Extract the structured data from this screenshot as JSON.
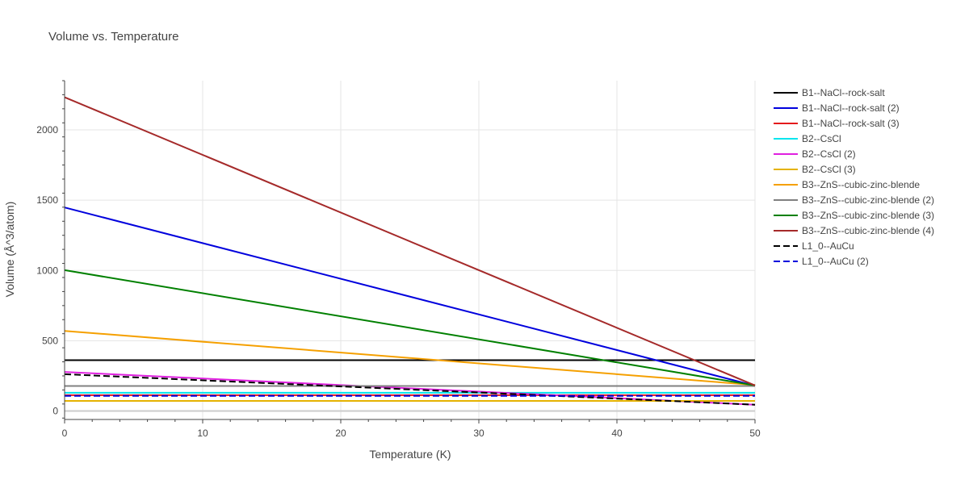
{
  "chart_data": {
    "type": "line",
    "title": "Volume vs. Temperature",
    "xlabel": "Temperature (K)",
    "ylabel": "Volume (Å^3/atom)",
    "xlim": [
      0,
      50
    ],
    "ylim": [
      -60,
      2350
    ],
    "x_ticks": [
      0,
      10,
      20,
      30,
      40,
      50
    ],
    "y_ticks": [
      0,
      500,
      1000,
      1500,
      2000
    ],
    "grid": true,
    "legend_position": "right",
    "series": [
      {
        "name": "B1--NaCl--rock-salt",
        "color": "#000000",
        "dash": "solid",
        "x": [
          0,
          50
        ],
        "y": [
          362,
          362
        ]
      },
      {
        "name": "B1--NaCl--rock-salt (2)",
        "color": "#0000dd",
        "dash": "solid",
        "x": [
          0,
          50
        ],
        "y": [
          1448,
          180
        ]
      },
      {
        "name": "B1--NaCl--rock-salt (3)",
        "color": "#e41a1c",
        "dash": "solid",
        "x": [
          0,
          50
        ],
        "y": [
          113,
          113
        ]
      },
      {
        "name": "B2--CsCl",
        "color": "#00e5ee",
        "dash": "solid",
        "x": [
          0,
          50
        ],
        "y": [
          130,
          130
        ]
      },
      {
        "name": "B2--CsCl (2)",
        "color": "#e020e0",
        "dash": "solid",
        "x": [
          0,
          50
        ],
        "y": [
          278,
          45
        ]
      },
      {
        "name": "B2--CsCl (3)",
        "color": "#e5b200",
        "dash": "solid",
        "x": [
          0,
          50
        ],
        "y": [
          72,
          72
        ]
      },
      {
        "name": "B3--ZnS--cubic-zinc-blende",
        "color": "#f5a000",
        "dash": "solid",
        "x": [
          0,
          50
        ],
        "y": [
          570,
          185
        ]
      },
      {
        "name": "B3--ZnS--cubic-zinc-blende (2)",
        "color": "#808080",
        "dash": "solid",
        "x": [
          0,
          50
        ],
        "y": [
          178,
          178
        ]
      },
      {
        "name": "B3--ZnS--cubic-zinc-blende (3)",
        "color": "#008000",
        "dash": "solid",
        "x": [
          0,
          50
        ],
        "y": [
          1002,
          182
        ]
      },
      {
        "name": "B3--ZnS--cubic-zinc-blende (4)",
        "color": "#a52a2a",
        "dash": "solid",
        "x": [
          0,
          50
        ],
        "y": [
          2232,
          182
        ]
      },
      {
        "name": "L1_0--AuCu",
        "color": "#000000",
        "dash": "dash",
        "x": [
          0,
          50
        ],
        "y": [
          262,
          45
        ]
      },
      {
        "name": "L1_0--AuCu (2)",
        "color": "#0000dd",
        "dash": "dash",
        "x": [
          0,
          50
        ],
        "y": [
          108,
          108
        ]
      }
    ]
  }
}
